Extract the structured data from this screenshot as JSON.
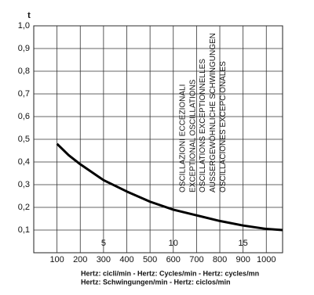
{
  "chart_data": {
    "type": "line",
    "y_label": "t",
    "xlim": [
      0,
      1070
    ],
    "ylim": [
      0,
      1.0
    ],
    "xticks": [
      100,
      200,
      300,
      400,
      500,
      600,
      700,
      800,
      900,
      1000
    ],
    "yticks": [
      {
        "value": 0.1,
        "label": "0,1"
      },
      {
        "value": 0.2,
        "label": "0,2"
      },
      {
        "value": 0.3,
        "label": "0,3"
      },
      {
        "value": 0.4,
        "label": "0,4"
      },
      {
        "value": 0.5,
        "label": "0,5"
      },
      {
        "value": 0.6,
        "label": "0,6"
      },
      {
        "value": 0.7,
        "label": "0,7"
      },
      {
        "value": 0.8,
        "label": "0,8"
      },
      {
        "value": 0.9,
        "label": "0,9"
      },
      {
        "value": 1.0,
        "label": "1,0"
      }
    ],
    "x2ticks": [
      {
        "value": 300,
        "label": "5"
      },
      {
        "value": 600,
        "label": "10"
      },
      {
        "value": 900,
        "label": "15"
      }
    ],
    "grid": true,
    "x": [
      100,
      150,
      200,
      300,
      400,
      500,
      600,
      700,
      800,
      900,
      1000,
      1070
    ],
    "series": [
      {
        "color": "#000000",
        "values": [
          0.48,
          0.43,
          0.39,
          0.32,
          0.27,
          0.225,
          0.19,
          0.165,
          0.14,
          0.12,
          0.105,
          0.1
        ]
      }
    ],
    "annotations": [
      "OSCILLAZIONI ECCEZIONALI",
      "EXCEPTIONAL OSCILLATIONS",
      "OSCILLATIONS EXCEPTIONNELLES",
      "AUSSERGEWÖHNLICHE SCHWINGUNGEN",
      "OSCILLACIONES EXCEPCIONALES"
    ],
    "footer": [
      "Hertz: cicli/min - Hertz: Cycles/min - Hertz: cycles/mn",
      "Hertz: Schwingungen/min - Hertz: ciclos/min"
    ]
  }
}
